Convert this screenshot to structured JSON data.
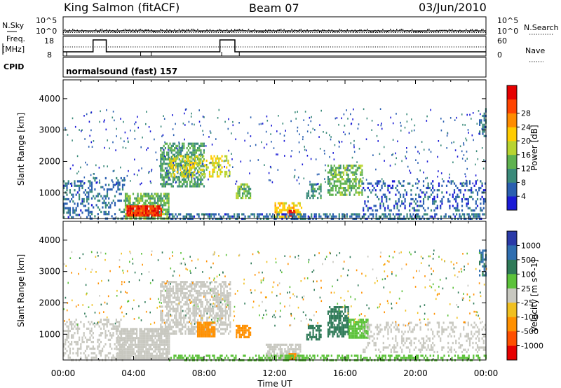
{
  "header": {
    "station": "King Salmon (fitACF)",
    "beam": "Beam 07",
    "date": "03/Jun/2010"
  },
  "side_labels": {
    "nsky": "N.Sky",
    "nsearch": "N.Search",
    "freq_line1": "Freq.",
    "freq_line2": "[MHz]",
    "nave": "Nave",
    "cpid": "CPID"
  },
  "top_axes": {
    "sky_left_ticks": [
      "10^5",
      "10^0"
    ],
    "sky_right_ticks": [
      "10^5",
      "10^0"
    ],
    "freq_ticks": [
      "18",
      "8"
    ],
    "nave_ticks": [
      "60",
      "0"
    ]
  },
  "cpid_text": "normalsound (fast)  157",
  "colors": {
    "power": [
      "#1a1ad6",
      "#2a5fb0",
      "#3a8a7a",
      "#5fb24f",
      "#b8d430",
      "#ffcc00",
      "#ff8c00",
      "#ff4400",
      "#e60000"
    ],
    "velocity": [
      "#2a3aa8",
      "#2f6eb0",
      "#2f7a58",
      "#5cc23a",
      "#c8c8c0",
      "#f0c020",
      "#ff9000",
      "#ff5000",
      "#e60000"
    ]
  },
  "chart_data": [
    {
      "type": "heatmap",
      "name": "Power",
      "ylabel": "Slant Range [km]",
      "yticks": [
        1000,
        2000,
        3000,
        4000
      ],
      "ylim": [
        180,
        4600
      ],
      "xlim": [
        0,
        24
      ],
      "colorbar": {
        "label": "Power [dB]",
        "ticks": [
          "4",
          "8",
          "12",
          "16",
          "20",
          "24",
          "28"
        ],
        "range": [
          0,
          30
        ]
      },
      "regions": [
        {
          "t0": 0.0,
          "t1": 1.5,
          "r0": 200,
          "r1": 1400,
          "value": 6,
          "density": 0.35
        },
        {
          "t0": 1.5,
          "t1": 3.5,
          "r0": 200,
          "r1": 1500,
          "value": 6,
          "density": 0.25
        },
        {
          "t0": 3.5,
          "t1": 6.0,
          "r0": 200,
          "r1": 1000,
          "value": 12,
          "density": 0.8
        },
        {
          "t0": 3.6,
          "t1": 5.6,
          "r0": 250,
          "r1": 600,
          "value": 26,
          "density": 0.9
        },
        {
          "t0": 5.5,
          "t1": 8.0,
          "r0": 1200,
          "r1": 2600,
          "value": 10,
          "density": 0.6
        },
        {
          "t0": 6.0,
          "t1": 9.5,
          "r0": 1500,
          "r1": 2200,
          "value": 16,
          "density": 0.45
        },
        {
          "t0": 9.8,
          "t1": 10.6,
          "r0": 800,
          "r1": 1300,
          "value": 12,
          "density": 0.7
        },
        {
          "t0": 12.0,
          "t1": 13.5,
          "r0": 200,
          "r1": 700,
          "value": 18,
          "density": 0.6
        },
        {
          "t0": 12.8,
          "t1": 13.1,
          "r0": 250,
          "r1": 450,
          "value": 28,
          "density": 0.9
        },
        {
          "t0": 13.8,
          "t1": 14.6,
          "r0": 800,
          "r1": 1300,
          "value": 8,
          "density": 0.6
        },
        {
          "t0": 15.0,
          "t1": 17.0,
          "r0": 900,
          "r1": 1900,
          "value": 12,
          "density": 0.6
        },
        {
          "t0": 17.0,
          "t1": 24.0,
          "r0": 400,
          "r1": 1400,
          "value": 5,
          "density": 0.3
        },
        {
          "t0": 6.0,
          "t1": 24.0,
          "r0": 200,
          "r1": 350,
          "value": 6,
          "density": 0.5
        },
        {
          "t0": 23.6,
          "t1": 24.0,
          "r0": 2800,
          "r1": 3700,
          "value": 7,
          "density": 0.5
        }
      ]
    },
    {
      "type": "heatmap",
      "name": "Velocity",
      "ylabel": "Slant Range [km]",
      "yticks": [
        1000,
        2000,
        3000,
        4000
      ],
      "ylim": [
        180,
        4600
      ],
      "xlim": [
        0,
        24
      ],
      "colorbar": {
        "label": "Velocity [m s^-1]",
        "ticks": [
          "1000",
          "500",
          "100",
          "25",
          "-25",
          "-100",
          "-500",
          "-1000"
        ]
      },
      "regions": [
        {
          "t0": 0.0,
          "t1": 3.5,
          "r0": 200,
          "r1": 1500,
          "value": 0,
          "density": 0.35
        },
        {
          "t0": 3.0,
          "t1": 6.0,
          "r0": 200,
          "r1": 1200,
          "value": 0,
          "density": 0.85
        },
        {
          "t0": 5.5,
          "t1": 9.5,
          "r0": 1000,
          "r1": 2700,
          "value": 0,
          "density": 0.6
        },
        {
          "t0": 7.6,
          "t1": 8.6,
          "r0": 900,
          "r1": 1400,
          "value": -300,
          "density": 0.9
        },
        {
          "t0": 9.8,
          "t1": 10.6,
          "r0": 900,
          "r1": 1300,
          "value": -300,
          "density": 0.8
        },
        {
          "t0": 11.5,
          "t1": 13.5,
          "r0": 200,
          "r1": 700,
          "value": 0,
          "density": 0.7
        },
        {
          "t0": 12.8,
          "t1": 13.2,
          "r0": 200,
          "r1": 400,
          "value": -300,
          "density": 0.9
        },
        {
          "t0": 13.8,
          "t1": 14.6,
          "r0": 800,
          "r1": 1300,
          "value": 200,
          "density": 0.6
        },
        {
          "t0": 15.0,
          "t1": 16.2,
          "r0": 900,
          "r1": 1900,
          "value": 200,
          "density": 0.7
        },
        {
          "t0": 16.2,
          "t1": 17.3,
          "r0": 900,
          "r1": 1500,
          "value": 60,
          "density": 0.8
        },
        {
          "t0": 17.0,
          "t1": 24.0,
          "r0": 400,
          "r1": 1400,
          "value": 0,
          "density": 0.3
        },
        {
          "t0": 6.0,
          "t1": 24.0,
          "r0": 200,
          "r1": 350,
          "value": 60,
          "density": 0.5
        },
        {
          "t0": 23.6,
          "t1": 24.0,
          "r0": 2800,
          "r1": 3700,
          "value": 600,
          "density": 0.5
        }
      ]
    }
  ],
  "x_axis": {
    "ticks": [
      "00:00",
      "04:00",
      "08:00",
      "12:00",
      "16:00",
      "20:00",
      "00:00"
    ],
    "label": "Time UT"
  }
}
